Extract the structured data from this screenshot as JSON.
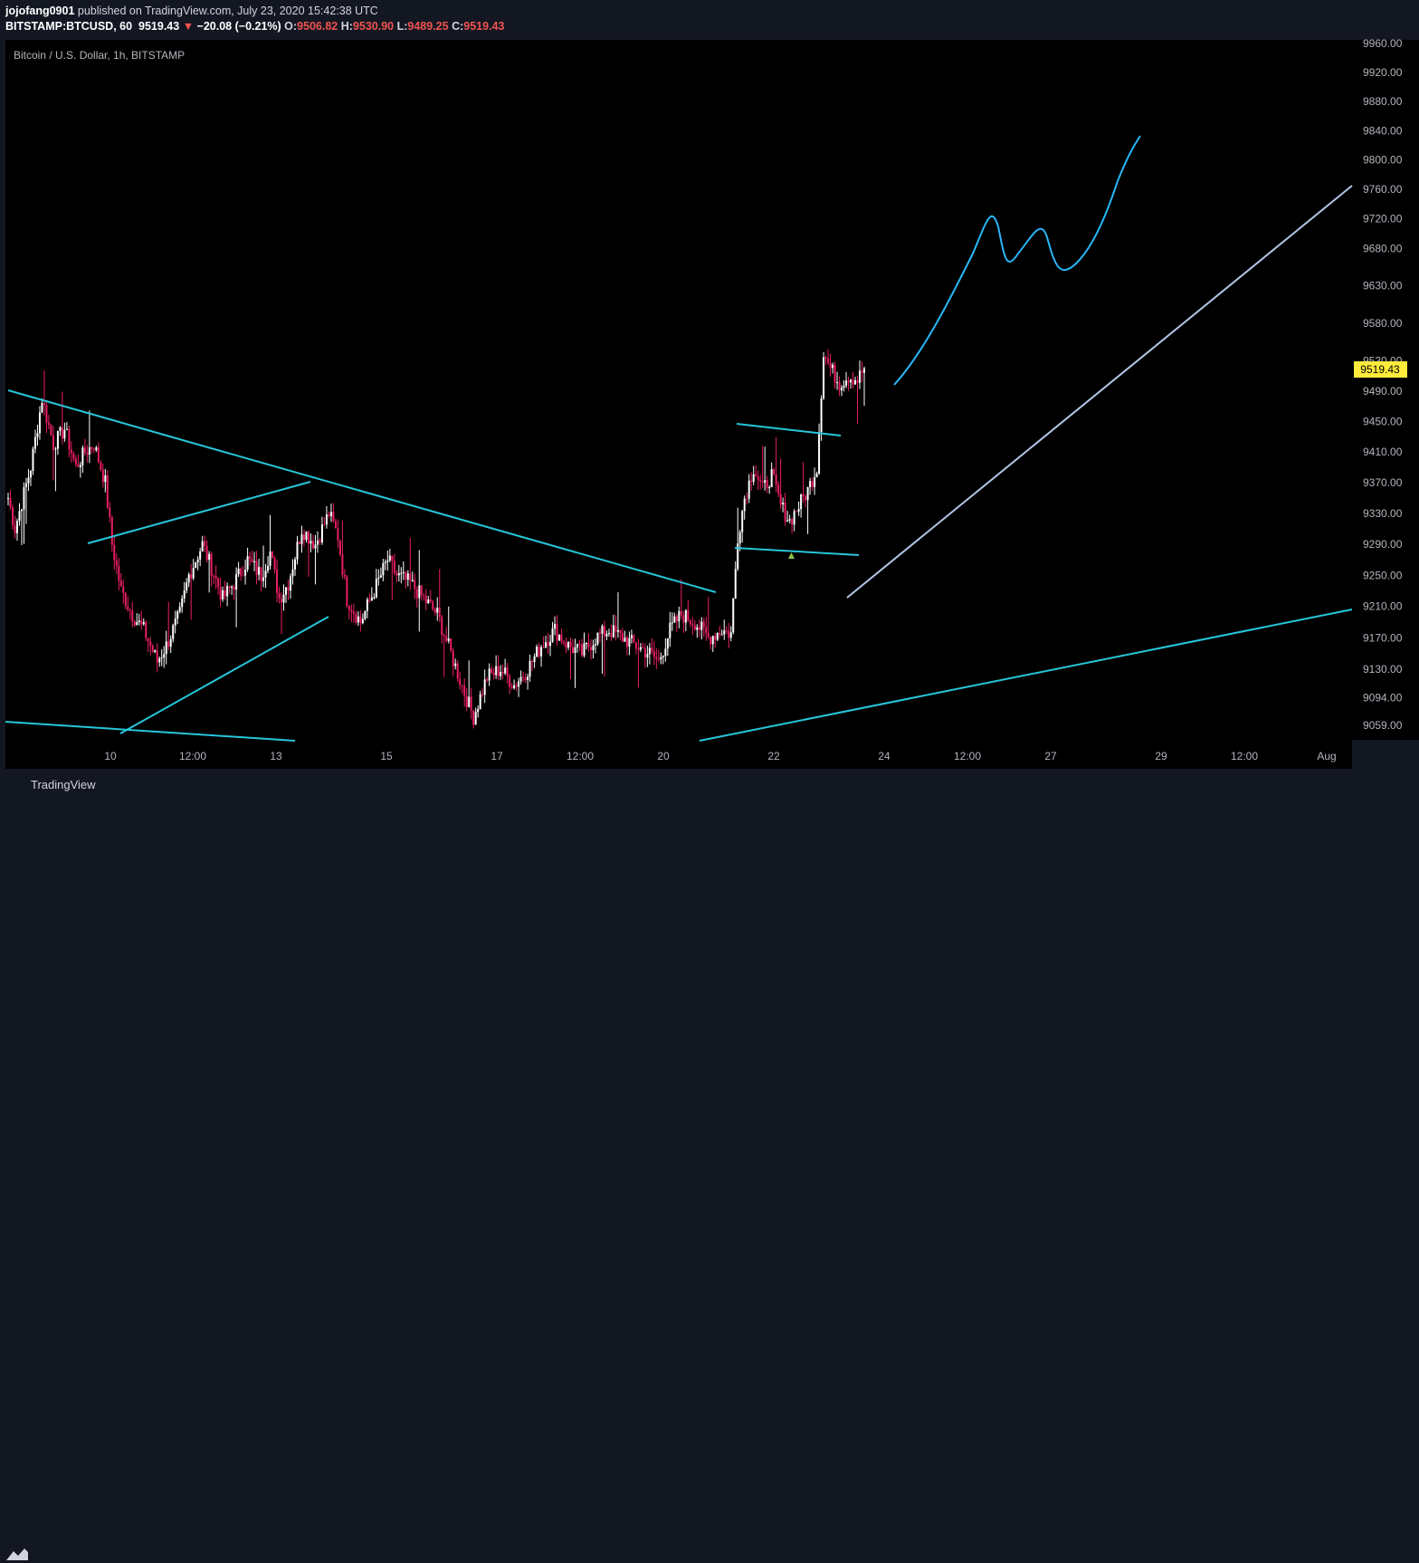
{
  "header": {
    "author": "jojofang0901",
    "published_text": "published on TradingView.com, July 23, 2020 15:42:38 UTC",
    "symbol": "BITSTAMP:BTCUSD, 60",
    "last": "9519.43",
    "change_arrow": "▼",
    "change": "−20.08 (−0.21%)",
    "o_label": "O:",
    "o_value": "9506.82",
    "h_label": "H:",
    "h_value": "9530.90",
    "l_label": "L:",
    "l_value": "9489.25",
    "c_label": "C:",
    "c_value": "9519.43"
  },
  "legend_label": "Bitcoin / U.S. Dollar, 1h, BITSTAMP",
  "footer": {
    "brand": "TradingView",
    "logo_icon": "tradingview-logo-icon"
  },
  "colors": {
    "background": "#000000",
    "candle_up": "#ffffff",
    "candle_down": "#e91e63",
    "trendline_cyan": "#26c6da",
    "projection_curve": "#29b6f6",
    "support_line": "#b3c6e6",
    "price_label_bg": "#ffeb3b"
  },
  "chart_data": {
    "type": "candlestick",
    "y_scale": "log",
    "ylim": [
      9030,
      9990
    ],
    "y_ticks": [
      "9960.00",
      "9920.00",
      "9880.00",
      "9840.00",
      "9800.00",
      "9760.00",
      "9720.00",
      "9680.00",
      "9630.00",
      "9580.00",
      "9530.00",
      "9490.00",
      "9450.00",
      "9410.00",
      "9370.00",
      "9330.00",
      "9290.00",
      "9250.00",
      "9210.00",
      "9170.00",
      "9130.00",
      "9094.00",
      "9059.00"
    ],
    "x_ticks": [
      "10",
      "12:00",
      "13",
      "15",
      "17",
      "12:00",
      "20",
      "22",
      "24",
      "12:00",
      "27",
      "29",
      "12:00",
      "Aug"
    ],
    "current_price": "9519.43",
    "price_path_checkpoints": [
      [
        0,
        9350
      ],
      [
        3,
        9310
      ],
      [
        10,
        9390
      ],
      [
        15,
        9480
      ],
      [
        20,
        9420
      ],
      [
        25,
        9440
      ],
      [
        30,
        9390
      ],
      [
        34,
        9410
      ],
      [
        38,
        9420
      ],
      [
        43,
        9370
      ],
      [
        46,
        9290
      ],
      [
        50,
        9230
      ],
      [
        55,
        9200
      ],
      [
        60,
        9180
      ],
      [
        66,
        9140
      ],
      [
        70,
        9160
      ],
      [
        76,
        9200
      ],
      [
        80,
        9250
      ],
      [
        86,
        9290
      ],
      [
        90,
        9260
      ],
      [
        95,
        9220
      ],
      [
        100,
        9240
      ],
      [
        106,
        9270
      ],
      [
        112,
        9250
      ],
      [
        116,
        9280
      ],
      [
        120,
        9220
      ],
      [
        124,
        9240
      ],
      [
        130,
        9310
      ],
      [
        136,
        9290
      ],
      [
        142,
        9330
      ],
      [
        146,
        9300
      ],
      [
        150,
        9220
      ],
      [
        156,
        9190
      ],
      [
        162,
        9230
      ],
      [
        168,
        9270
      ],
      [
        172,
        9250
      ],
      [
        178,
        9240
      ],
      [
        184,
        9220
      ],
      [
        190,
        9200
      ],
      [
        196,
        9150
      ],
      [
        202,
        9100
      ],
      [
        206,
        9070
      ],
      [
        212,
        9120
      ],
      [
        218,
        9130
      ],
      [
        224,
        9110
      ],
      [
        230,
        9130
      ],
      [
        236,
        9160
      ],
      [
        242,
        9180
      ],
      [
        248,
        9160
      ],
      [
        254,
        9150
      ],
      [
        260,
        9170
      ],
      [
        266,
        9180
      ],
      [
        272,
        9170
      ],
      [
        278,
        9160
      ],
      [
        284,
        9150
      ],
      [
        288,
        9140
      ],
      [
        293,
        9180
      ],
      [
        298,
        9200
      ],
      [
        304,
        9190
      ],
      [
        310,
        9170
      ],
      [
        316,
        9180
      ],
      [
        320,
        9175
      ],
      [
        323,
        9300
      ],
      [
        326,
        9350
      ],
      [
        330,
        9390
      ],
      [
        334,
        9360
      ],
      [
        338,
        9380
      ],
      [
        342,
        9340
      ],
      [
        346,
        9320
      ],
      [
        350,
        9340
      ],
      [
        354,
        9360
      ],
      [
        358,
        9390
      ],
      [
        361,
        9540
      ],
      [
        364,
        9520
      ],
      [
        368,
        9500
      ],
      [
        372,
        9510
      ],
      [
        376,
        9505
      ],
      [
        379,
        9520
      ]
    ]
  },
  "drawings": [
    {
      "kind": "trendline",
      "name": "descending-resistance"
    },
    {
      "kind": "trendline",
      "name": "channel-upper"
    },
    {
      "kind": "trendline",
      "name": "channel-lower"
    },
    {
      "kind": "trendline",
      "name": "bottom-support"
    },
    {
      "kind": "trendline",
      "name": "flag-upper"
    },
    {
      "kind": "trendline",
      "name": "flag-lower"
    },
    {
      "kind": "trendline",
      "name": "long-rising-support"
    },
    {
      "kind": "trendline",
      "name": "steep-support"
    },
    {
      "kind": "brush",
      "name": "bullish-projection"
    },
    {
      "kind": "marker",
      "name": "low-marker-triangle"
    }
  ]
}
